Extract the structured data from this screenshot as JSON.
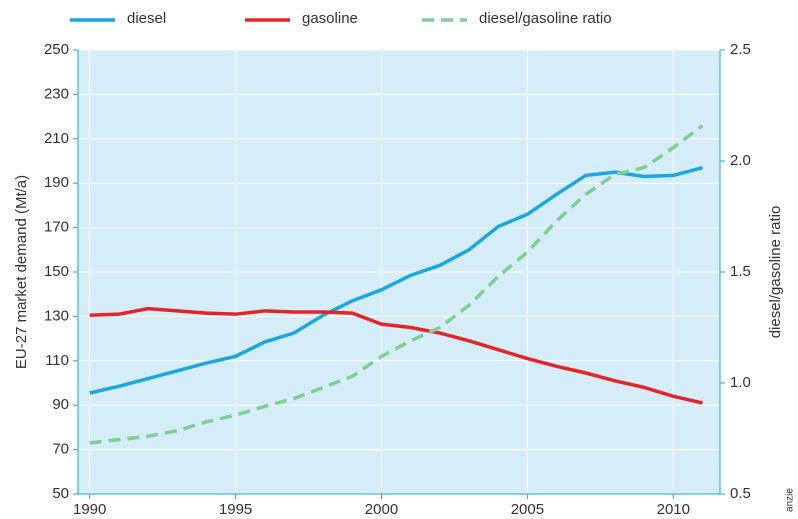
{
  "chart_data": {
    "type": "line",
    "x": [
      1990,
      1991,
      1992,
      1993,
      1994,
      1995,
      1996,
      1997,
      1998,
      1999,
      2000,
      2001,
      2002,
      2003,
      2004,
      2005,
      2006,
      2007,
      2008,
      2009,
      2010,
      2011
    ],
    "series": [
      {
        "name": "diesel",
        "color": "#1aa7e0",
        "values": [
          95.5,
          98.5,
          102,
          105.5,
          109,
          112,
          118.5,
          122.5,
          130.5,
          137,
          142,
          148.5,
          153,
          160,
          170.5,
          176,
          185,
          193.5,
          195,
          193,
          193.5,
          197
        ]
      },
      {
        "name": "gasoline",
        "color": "#e42527",
        "values": [
          130.5,
          131,
          133.5,
          132.5,
          131.5,
          131,
          132.5,
          132,
          132,
          131.5,
          126.5,
          125,
          122.5,
          119,
          115,
          111,
          107.5,
          104.5,
          101,
          98,
          94,
          91
        ]
      },
      {
        "name": "diesel/gasoline ratio",
        "color": "#7fce93",
        "dashed": true,
        "axis": "y2",
        "values": [
          0.73,
          0.745,
          0.76,
          0.785,
          0.825,
          0.855,
          0.895,
          0.93,
          0.98,
          1.03,
          1.12,
          1.19,
          1.25,
          1.35,
          1.48,
          1.59,
          1.73,
          1.85,
          1.94,
          1.97,
          2.06,
          2.16
        ]
      }
    ],
    "xlim": [
      1989.6,
      2011.6
    ],
    "xticks": [
      1990,
      1995,
      2000,
      2005,
      2010
    ],
    "ylim": [
      50,
      250
    ],
    "yticks": [
      50,
      70,
      90,
      110,
      130,
      150,
      170,
      190,
      210,
      230,
      250
    ],
    "y2lim": [
      0.5,
      2.5
    ],
    "y2ticks": [
      0.5,
      {
        "value": 1,
        "label": "1.0"
      },
      1.5,
      {
        "value": 2,
        "label": "2.0"
      },
      2.5
    ],
    "ylabel": "EU-27 market demand (Mt/a)",
    "y2label": "diesel/gasoline ratio",
    "credit": "anzie",
    "grid": true,
    "legend": "top"
  }
}
